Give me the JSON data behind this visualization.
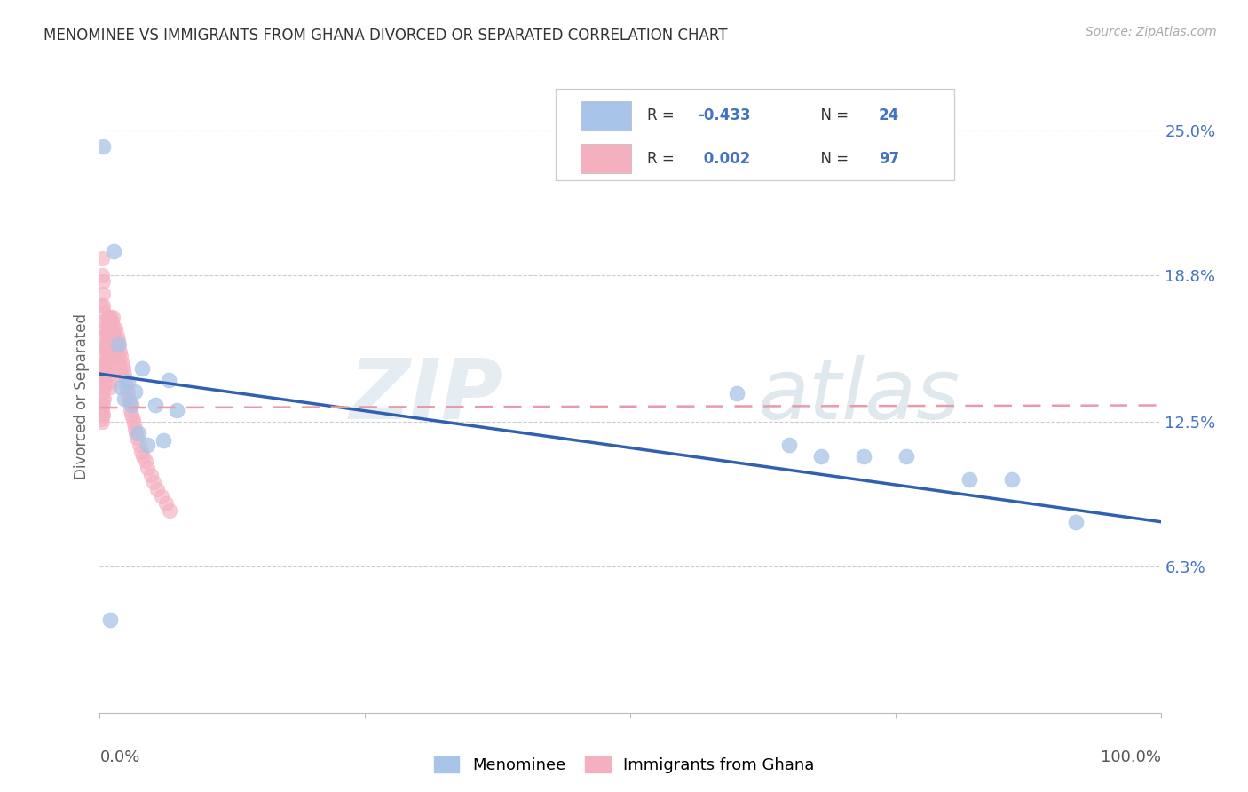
{
  "title": "MENOMINEE VS IMMIGRANTS FROM GHANA DIVORCED OR SEPARATED CORRELATION CHART",
  "source": "Source: ZipAtlas.com",
  "ylabel": "Divorced or Separated",
  "ytick_vals": [
    0.0,
    0.063,
    0.125,
    0.188,
    0.25
  ],
  "ytick_labels": [
    "",
    "6.3%",
    "12.5%",
    "18.8%",
    "25.0%"
  ],
  "legend_blue_r": "-0.433",
  "legend_blue_n": "24",
  "legend_pink_r": "0.002",
  "legend_pink_n": "97",
  "legend_blue_label": "Menominee",
  "legend_pink_label": "Immigrants from Ghana",
  "blue_fill": "#a8c4e8",
  "pink_fill": "#f5b0c0",
  "blue_edge": "#a8c4e8",
  "pink_edge": "#f5b0c0",
  "blue_line_color": "#3060b0",
  "pink_line_color": "#e89aaa",
  "blue_scatter_x": [
    0.003,
    0.01,
    0.013,
    0.017,
    0.02,
    0.023,
    0.026,
    0.03,
    0.033,
    0.036,
    0.04,
    0.045,
    0.052,
    0.06,
    0.065,
    0.072,
    0.6,
    0.65,
    0.68,
    0.72,
    0.76,
    0.82,
    0.86,
    0.92
  ],
  "blue_scatter_y": [
    0.243,
    0.04,
    0.198,
    0.158,
    0.14,
    0.135,
    0.142,
    0.132,
    0.138,
    0.12,
    0.148,
    0.115,
    0.132,
    0.117,
    0.143,
    0.13,
    0.137,
    0.115,
    0.11,
    0.11,
    0.11,
    0.1,
    0.1,
    0.082
  ],
  "pink_scatter_x": [
    0.001,
    0.001,
    0.001,
    0.002,
    0.002,
    0.002,
    0.002,
    0.002,
    0.003,
    0.003,
    0.003,
    0.003,
    0.003,
    0.004,
    0.004,
    0.004,
    0.004,
    0.005,
    0.005,
    0.005,
    0.005,
    0.006,
    0.006,
    0.006,
    0.007,
    0.007,
    0.007,
    0.008,
    0.008,
    0.008,
    0.009,
    0.009,
    0.01,
    0.01,
    0.011,
    0.011,
    0.012,
    0.012,
    0.013,
    0.013,
    0.014,
    0.014,
    0.015,
    0.015,
    0.016,
    0.016,
    0.017,
    0.017,
    0.018,
    0.018,
    0.019,
    0.019,
    0.02,
    0.02,
    0.021,
    0.022,
    0.023,
    0.024,
    0.025,
    0.026,
    0.027,
    0.028,
    0.029,
    0.03,
    0.031,
    0.032,
    0.033,
    0.034,
    0.035,
    0.037,
    0.039,
    0.041,
    0.043,
    0.045,
    0.048,
    0.051,
    0.054,
    0.058,
    0.062,
    0.066,
    0.002,
    0.002,
    0.003,
    0.003,
    0.003,
    0.004,
    0.004,
    0.005,
    0.005,
    0.006,
    0.006,
    0.007,
    0.007,
    0.008,
    0.009,
    0.01,
    0.001
  ],
  "pink_scatter_y": [
    0.132,
    0.128,
    0.126,
    0.14,
    0.135,
    0.13,
    0.128,
    0.125,
    0.145,
    0.142,
    0.138,
    0.132,
    0.128,
    0.15,
    0.145,
    0.14,
    0.135,
    0.158,
    0.152,
    0.147,
    0.142,
    0.163,
    0.157,
    0.15,
    0.168,
    0.162,
    0.155,
    0.17,
    0.165,
    0.158,
    0.168,
    0.16,
    0.17,
    0.163,
    0.168,
    0.16,
    0.17,
    0.162,
    0.165,
    0.158,
    0.163,
    0.155,
    0.165,
    0.158,
    0.162,
    0.155,
    0.16,
    0.153,
    0.158,
    0.15,
    0.155,
    0.148,
    0.153,
    0.145,
    0.15,
    0.148,
    0.145,
    0.142,
    0.14,
    0.138,
    0.135,
    0.133,
    0.13,
    0.128,
    0.126,
    0.124,
    0.122,
    0.12,
    0.118,
    0.115,
    0.112,
    0.11,
    0.108,
    0.105,
    0.102,
    0.099,
    0.096,
    0.093,
    0.09,
    0.087,
    0.195,
    0.188,
    0.185,
    0.18,
    0.175,
    0.172,
    0.168,
    0.165,
    0.162,
    0.158,
    0.155,
    0.152,
    0.148,
    0.145,
    0.142,
    0.14,
    0.175
  ],
  "blue_line_x": [
    0.0,
    1.0
  ],
  "blue_line_y": [
    0.1455,
    0.082
  ],
  "pink_line_x": [
    0.0,
    1.0
  ],
  "pink_line_y": [
    0.131,
    0.132
  ],
  "xlim": [
    0.0,
    1.0
  ],
  "ylim": [
    0.0,
    0.272
  ],
  "figsize": [
    14.06,
    8.92
  ],
  "dpi": 100
}
